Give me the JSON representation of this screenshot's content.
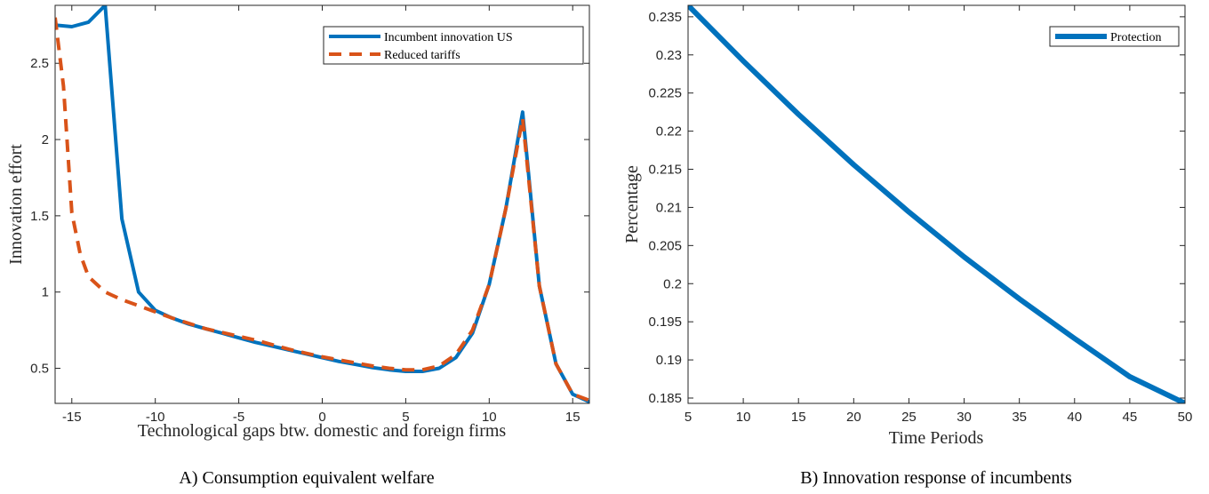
{
  "chart_data": [
    {
      "type": "line",
      "xlabel": "Technological gaps btw. domestic and foreign firms",
      "ylabel": "Innovation effort",
      "xlim": [
        -16,
        16
      ],
      "ylim": [
        0.27,
        2.88
      ],
      "xticks": [
        -15,
        -10,
        -5,
        0,
        5,
        10,
        15
      ],
      "yticks": [
        0.5,
        1,
        1.5,
        2,
        2.5
      ],
      "legend_position": "top-right",
      "caption": "A) Consumption equivalent welfare",
      "series": [
        {
          "name": "Incumbent innovation US",
          "color": "#0072BD",
          "style": "solid",
          "x": [
            -16,
            -15,
            -14,
            -13,
            -12,
            -11,
            -10,
            -9,
            -8,
            -7,
            -6,
            -5,
            -4,
            -3,
            -2,
            -1,
            0,
            1,
            2,
            3,
            4,
            5,
            6,
            7,
            8,
            9,
            10,
            11,
            12,
            13,
            14,
            15,
            16
          ],
          "y": [
            2.75,
            2.74,
            2.77,
            2.88,
            1.48,
            1.0,
            0.88,
            0.83,
            0.79,
            0.76,
            0.73,
            0.7,
            0.67,
            0.645,
            0.62,
            0.595,
            0.57,
            0.545,
            0.525,
            0.505,
            0.49,
            0.48,
            0.48,
            0.5,
            0.57,
            0.73,
            1.05,
            1.55,
            2.18,
            1.04,
            0.53,
            0.33,
            0.28
          ]
        },
        {
          "name": "Reduced tariffs",
          "color": "#D95319",
          "style": "dashed",
          "x": [
            -16,
            -15.5,
            -15,
            -14.5,
            -14,
            -13,
            -12,
            -11,
            -10,
            -9,
            -8,
            -7,
            -6,
            -5,
            -4,
            -3,
            -2,
            -1,
            0,
            1,
            2,
            3,
            4,
            5,
            6,
            7,
            8,
            9,
            10,
            11,
            12,
            13,
            14,
            15,
            16
          ],
          "y": [
            2.8,
            2.35,
            1.52,
            1.25,
            1.1,
            1.0,
            0.95,
            0.91,
            0.87,
            0.83,
            0.795,
            0.76,
            0.735,
            0.71,
            0.685,
            0.655,
            0.625,
            0.6,
            0.575,
            0.555,
            0.535,
            0.515,
            0.5,
            0.49,
            0.49,
            0.515,
            0.59,
            0.75,
            1.05,
            1.55,
            2.14,
            1.04,
            0.53,
            0.33,
            0.29
          ]
        }
      ]
    },
    {
      "type": "line",
      "xlabel": "Time Periods",
      "ylabel": "Percentage",
      "xlim": [
        5,
        50
      ],
      "ylim": [
        0.1843,
        0.2365
      ],
      "xticks": [
        5,
        10,
        15,
        20,
        25,
        30,
        35,
        40,
        45,
        50
      ],
      "yticks": [
        0.185,
        0.19,
        0.195,
        0.2,
        0.205,
        0.21,
        0.215,
        0.22,
        0.225,
        0.23,
        0.235
      ],
      "ytick_labels": [
        "0.185",
        "0.19",
        "0.195",
        "0.2",
        "0.205",
        "0.21",
        "0.215",
        "0.22",
        "0.225",
        "0.23",
        "0.235"
      ],
      "legend_position": "top-right",
      "caption": "B) Innovation response of incumbents",
      "series": [
        {
          "name": "Protection",
          "color": "#0072BD",
          "style": "solid",
          "x": [
            5,
            10,
            15,
            20,
            25,
            30,
            35,
            40,
            45,
            50
          ],
          "y": [
            0.2365,
            0.2292,
            0.2222,
            0.2156,
            0.2094,
            0.2035,
            0.198,
            0.1928,
            0.1878,
            0.1843
          ]
        }
      ]
    }
  ]
}
